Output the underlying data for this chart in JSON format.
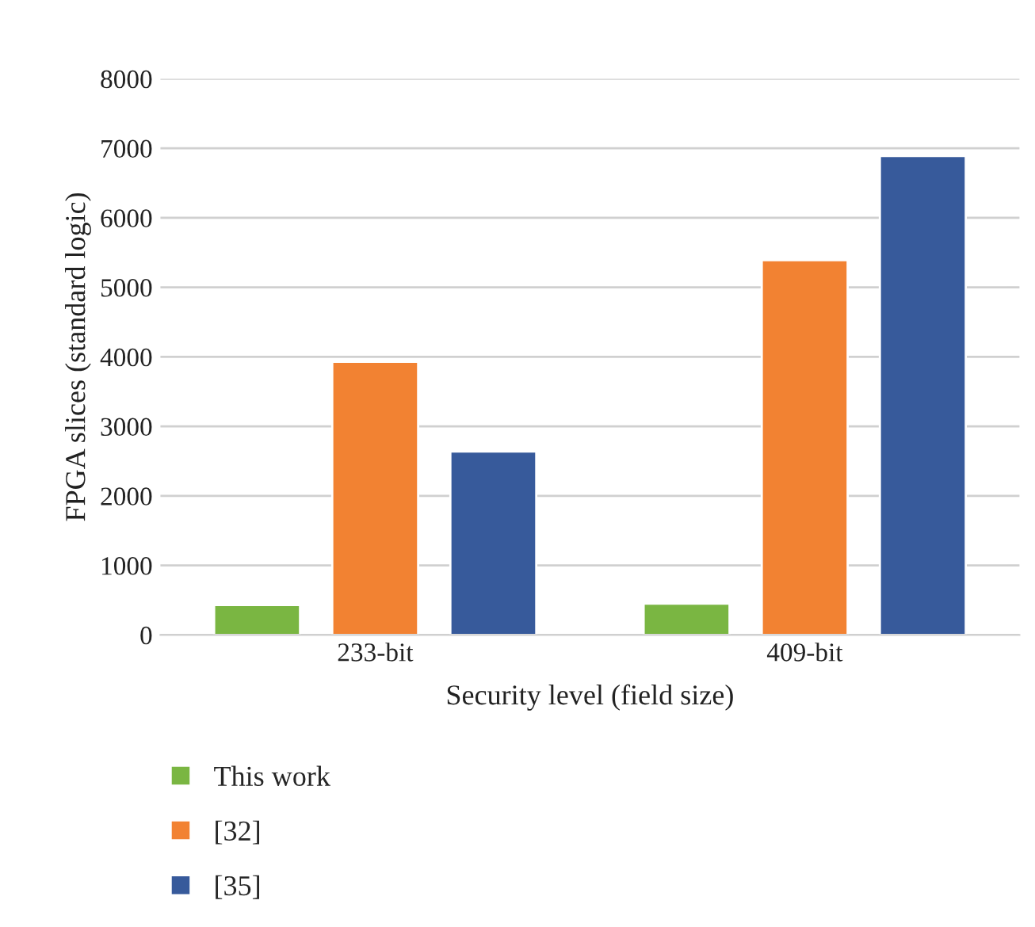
{
  "chart_data": {
    "type": "bar",
    "xlabel": "Security level (field size)",
    "ylabel": "FPGA slices (standard logic)",
    "categories": [
      "233-bit",
      "409-bit"
    ],
    "series": [
      {
        "name": "This work",
        "color": "#7ab642",
        "values": [
          430,
          450
        ]
      },
      {
        "name": "[32]",
        "color": "#f28232",
        "values": [
          3930,
          5390
        ]
      },
      {
        "name": "[35]",
        "color": "#375a9b",
        "values": [
          2640,
          6890
        ]
      }
    ],
    "ylim": [
      0,
      8000
    ],
    "yticks": [
      0,
      1000,
      2000,
      3000,
      4000,
      5000,
      6000,
      7000,
      8000
    ],
    "grid": "y",
    "legend": "bottom left"
  }
}
